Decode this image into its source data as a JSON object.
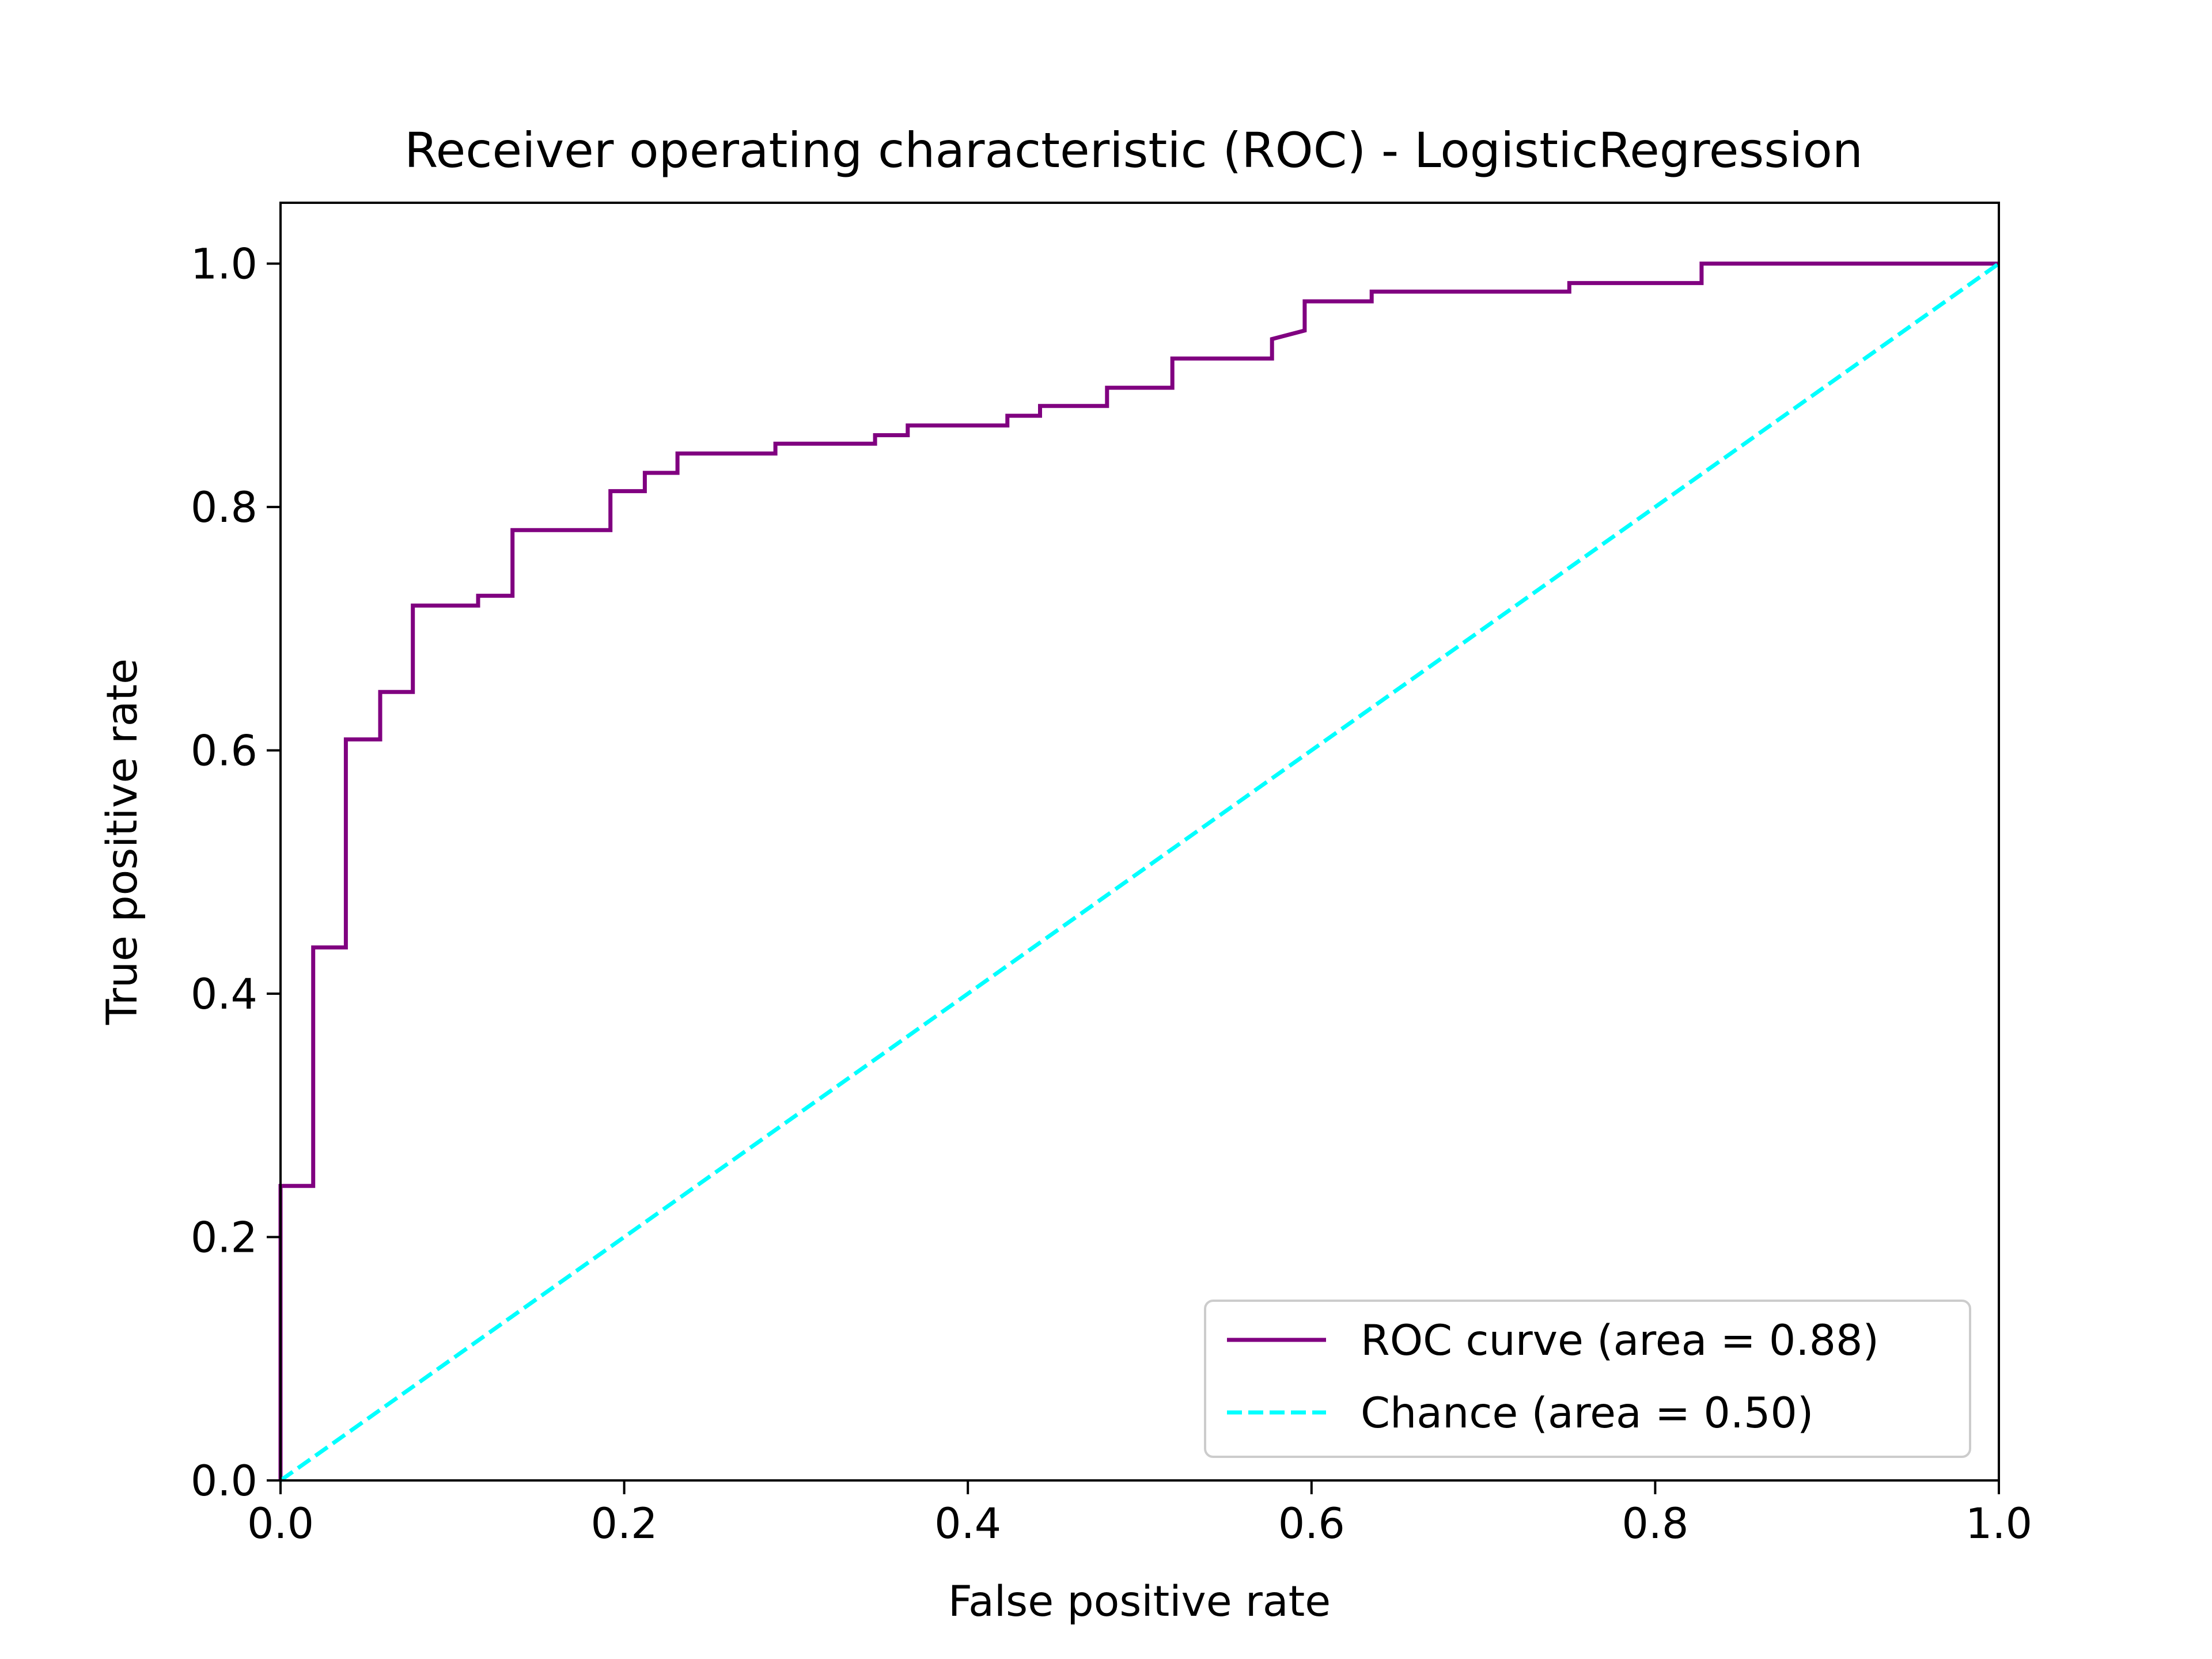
{
  "chart_data": {
    "type": "line",
    "title": "Receiver operating characteristic (ROC) - LogisticRegression",
    "xlabel": "False positive rate",
    "ylabel": "True positive rate",
    "xlim": [
      0.0,
      1.0
    ],
    "ylim": [
      0.0,
      1.05
    ],
    "grid": false,
    "legend_position": "bottom-right",
    "x_ticks": [
      {
        "value": 0.0,
        "label": "0.0"
      },
      {
        "value": 0.2,
        "label": "0.2"
      },
      {
        "value": 0.4,
        "label": "0.4"
      },
      {
        "value": 0.6,
        "label": "0.6"
      },
      {
        "value": 0.8,
        "label": "0.8"
      },
      {
        "value": 1.0,
        "label": "1.0"
      }
    ],
    "y_ticks": [
      {
        "value": 0.0,
        "label": "0.0"
      },
      {
        "value": 0.2,
        "label": "0.2"
      },
      {
        "value": 0.4,
        "label": "0.4"
      },
      {
        "value": 0.6,
        "label": "0.6"
      },
      {
        "value": 0.8,
        "label": "0.8"
      },
      {
        "value": 1.0,
        "label": "1.0"
      }
    ],
    "series": [
      {
        "name": "ROC curve (area = 0.88)",
        "color": "#800080",
        "style": "solid",
        "x": [
          0.0,
          0.0,
          0.019,
          0.019,
          0.038,
          0.038,
          0.058,
          0.058,
          0.077,
          0.077,
          0.115,
          0.115,
          0.135,
          0.135,
          0.192,
          0.192,
          0.212,
          0.212,
          0.231,
          0.231,
          0.288,
          0.288,
          0.346,
          0.346,
          0.365,
          0.365,
          0.423,
          0.423,
          0.442,
          0.442,
          0.481,
          0.481,
          0.519,
          0.519,
          0.577,
          0.577,
          0.596,
          0.596,
          0.635,
          0.635,
          0.75,
          0.75,
          0.827,
          0.827,
          1.0
        ],
        "y": [
          0.0,
          0.242,
          0.242,
          0.438,
          0.438,
          0.609,
          0.609,
          0.648,
          0.648,
          0.719,
          0.719,
          0.727,
          0.727,
          0.781,
          0.781,
          0.813,
          0.813,
          0.828,
          0.828,
          0.844,
          0.844,
          0.852,
          0.852,
          0.859,
          0.859,
          0.867,
          0.867,
          0.875,
          0.875,
          0.883,
          0.883,
          0.898,
          0.898,
          0.922,
          0.922,
          0.938,
          0.945,
          0.969,
          0.969,
          0.977,
          0.977,
          0.984,
          0.984,
          1.0,
          1.0
        ]
      },
      {
        "name": "Chance (area = 0.50)",
        "color": "#00ffff",
        "style": "dashed",
        "x": [
          0.0,
          1.0
        ],
        "y": [
          0.0,
          1.0
        ]
      }
    ]
  }
}
